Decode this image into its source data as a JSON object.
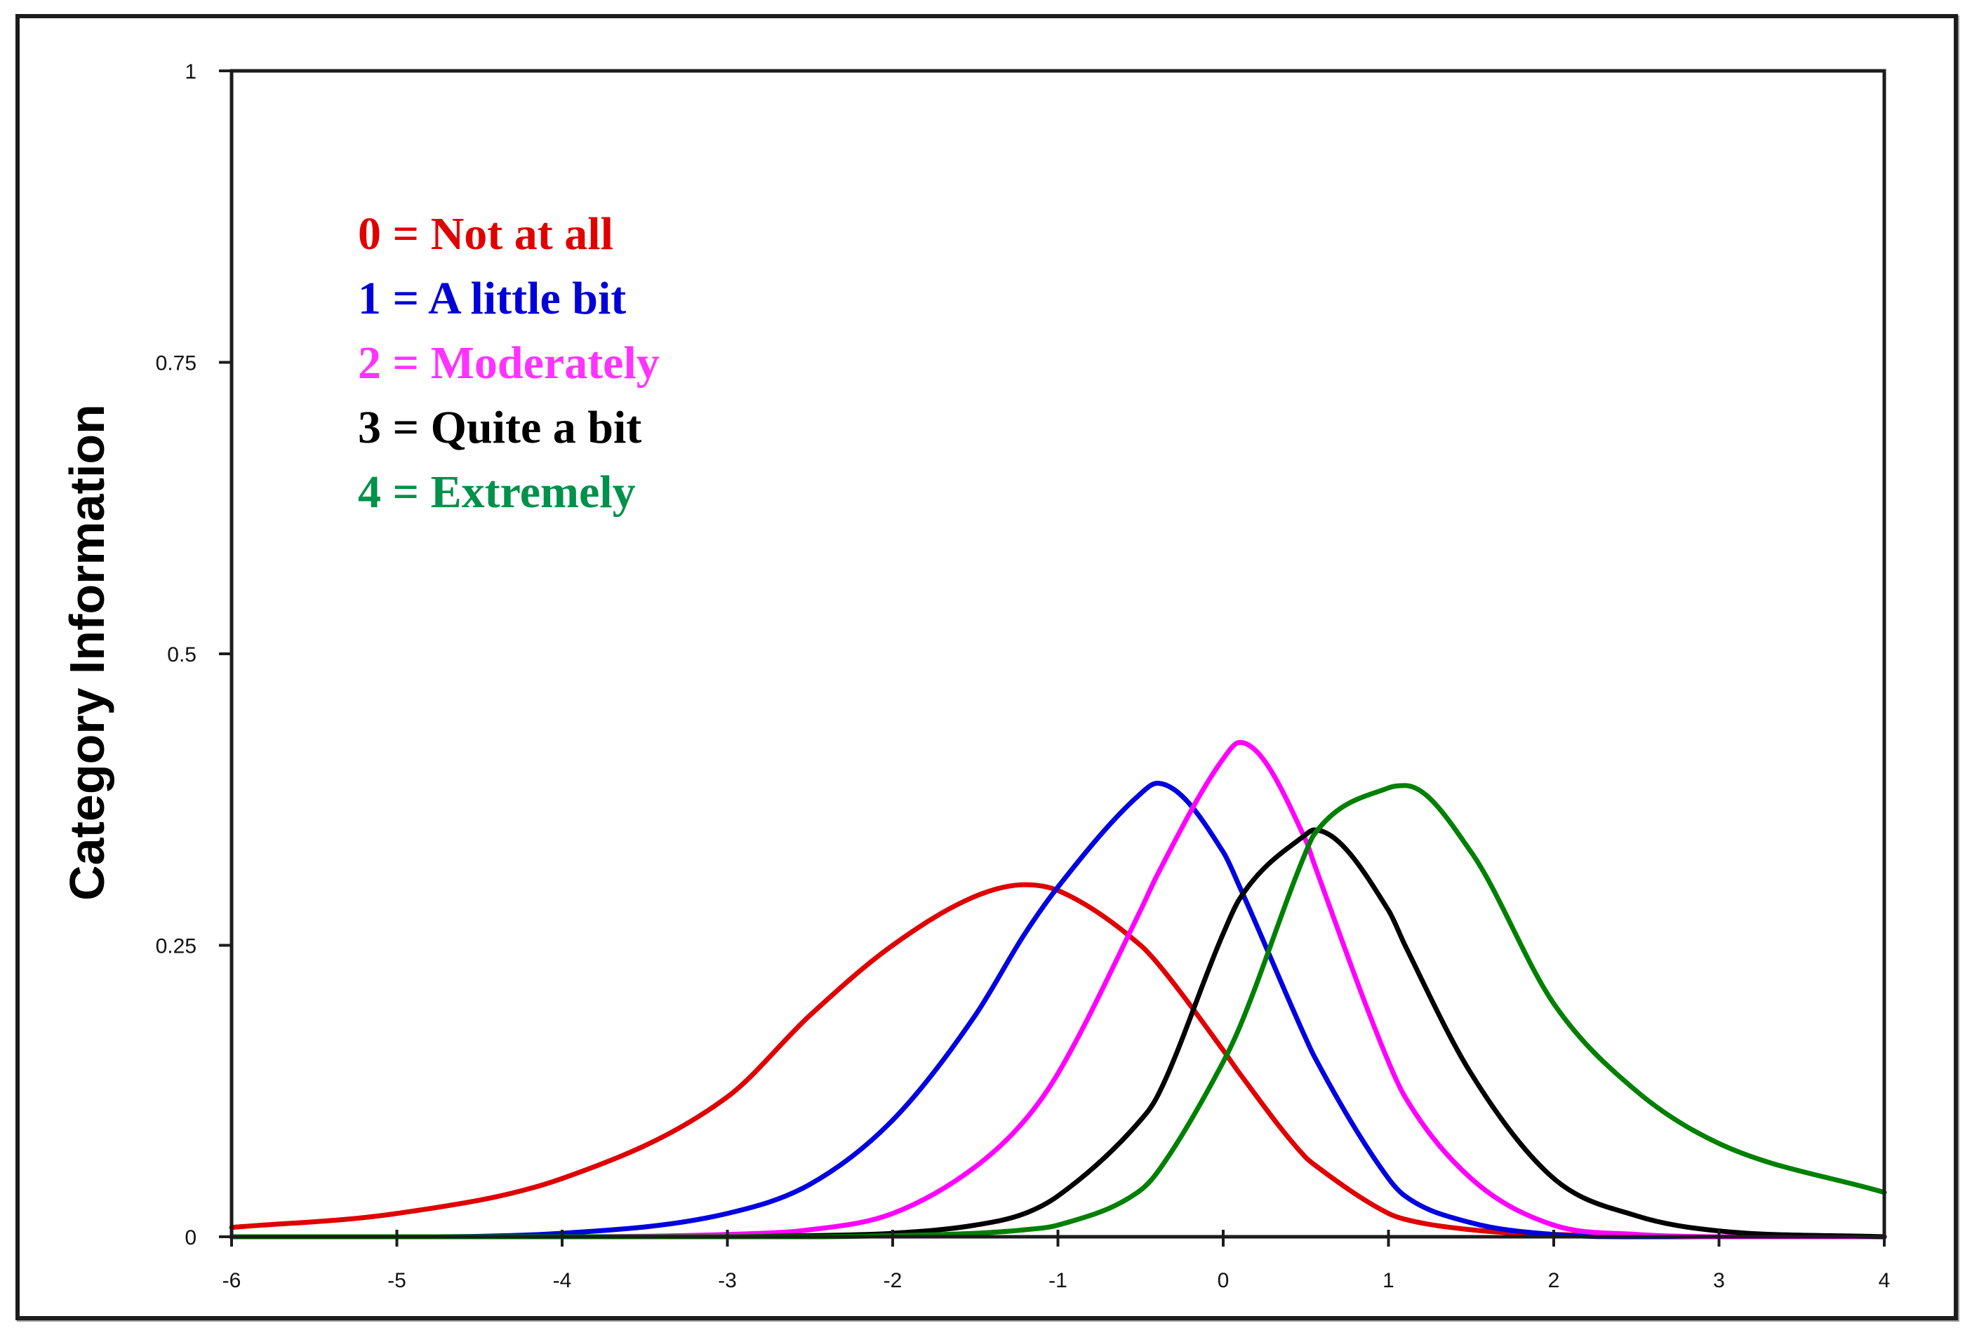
{
  "chart_data": {
    "type": "line",
    "title": "",
    "xlabel": "",
    "ylabel": "Category Information",
    "xlim": [
      -6,
      4
    ],
    "ylim": [
      0,
      1
    ],
    "grid": false,
    "legend_position": "upper-left (inside plot)",
    "x_ticks": [
      "-6",
      "-5",
      "-4",
      "-3",
      "-2",
      "-1",
      "0",
      "1",
      "2",
      "3",
      "4"
    ],
    "y_ticks": [
      "0",
      "0.25",
      "0.5",
      "0.75",
      "1"
    ],
    "x": [
      -6,
      -5,
      -4,
      -3,
      -2.5,
      -2,
      -1.5,
      -1.2,
      -1,
      -0.5,
      -0.4,
      0,
      0.1,
      0.5,
      0.55,
      1,
      1.1,
      1.5,
      2,
      2.5,
      3,
      4
    ],
    "series": [
      {
        "name": "0 = Not at all",
        "color": "#e00000",
        "peak": {
          "x": -1.2,
          "y": 0.3
        },
        "values": [
          0.008,
          0.02,
          0.05,
          0.12,
          0.19,
          0.25,
          0.292,
          0.302,
          0.297,
          0.25,
          0.235,
          0.16,
          0.14,
          0.068,
          0.062,
          0.02,
          0.015,
          0.006,
          0.002,
          0.001,
          0.0,
          0.0
        ]
      },
      {
        "name": "1 = A little bit",
        "color": "#0000e0",
        "peak": {
          "x": -0.4,
          "y": 0.39
        },
        "values": [
          0.0,
          0.0,
          0.003,
          0.02,
          0.045,
          0.1,
          0.19,
          0.26,
          0.3,
          0.38,
          0.389,
          0.33,
          0.3,
          0.17,
          0.155,
          0.05,
          0.035,
          0.012,
          0.002,
          0.0,
          0.0,
          0.0
        ]
      },
      {
        "name": "2 = Moderately",
        "color": "#ff00ff",
        "peak": {
          "x": 0.1,
          "y": 0.42
        },
        "values": [
          0.0,
          0.0,
          0.0,
          0.002,
          0.006,
          0.02,
          0.06,
          0.1,
          0.14,
          0.28,
          0.31,
          0.41,
          0.424,
          0.34,
          0.32,
          0.15,
          0.12,
          0.05,
          0.01,
          0.002,
          0.0,
          0.0
        ]
      },
      {
        "name": "3 = Quite a bit",
        "color": "#000000",
        "peak": {
          "x": 0.55,
          "y": 0.35
        },
        "values": [
          0.0,
          0.0,
          0.0,
          0.0,
          0.001,
          0.003,
          0.01,
          0.02,
          0.035,
          0.1,
          0.12,
          0.26,
          0.29,
          0.345,
          0.349,
          0.28,
          0.25,
          0.14,
          0.05,
          0.018,
          0.005,
          0.0
        ]
      },
      {
        "name": "4 = Extremely",
        "color": "#008000",
        "peak": {
          "x": 1.1,
          "y": 0.39
        },
        "values": [
          0.0,
          0.0,
          0.0,
          0.0,
          0.0,
          0.001,
          0.003,
          0.006,
          0.01,
          0.04,
          0.055,
          0.15,
          0.18,
          0.33,
          0.345,
          0.385,
          0.387,
          0.33,
          0.2,
          0.125,
          0.08,
          0.038
        ]
      }
    ]
  },
  "legend": {
    "items": [
      {
        "code": "0",
        "label": "Not at all",
        "text": "0 = Not at all",
        "color": "#e00000"
      },
      {
        "code": "1",
        "label": "A little bit",
        "text": "1 = A little bit",
        "color": "#0000d8"
      },
      {
        "code": "2",
        "label": "Moderately",
        "text": "2 = Moderately",
        "color": "#ff33ff"
      },
      {
        "code": "3",
        "label": "Quite a bit",
        "text": "3 = Quite a bit",
        "color": "#000000"
      },
      {
        "code": "4",
        "label": "Extremely",
        "text": "4 = Extremely",
        "color": "#00914a"
      }
    ]
  },
  "axes": {
    "y_title": "Category Information",
    "axis_color": "#1c1c1c"
  }
}
